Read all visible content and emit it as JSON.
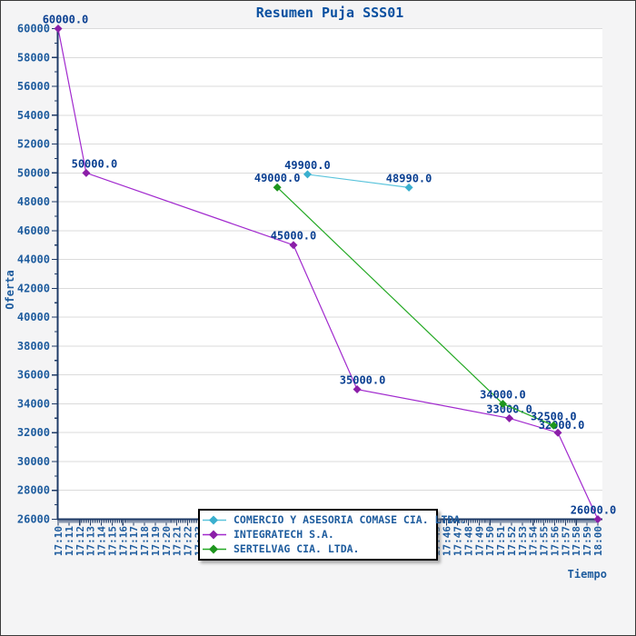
{
  "window": {
    "kind": "chart-panel"
  },
  "colors": {
    "background": "#F4F4F5",
    "plot_background": "#FFFFFF",
    "gridline": "#DBDBDB",
    "axis": "#1E3A66",
    "tick_label": "#1E5C9E",
    "title": "#0A50A0",
    "data_label": "#0A3F91",
    "legend_text": "#1E5C9E",
    "legend_border": "#000000",
    "legend_background": "#FFFFFF"
  },
  "chart_data": {
    "type": "line",
    "title": "Resumen Puja SSS01",
    "xlabel": "Tiempo",
    "ylabel": "Oferta",
    "ylim": [
      26000,
      60000
    ],
    "y_major_step": 2000,
    "y_minor_step": 1000,
    "x_axis": {
      "start": "17:10",
      "end": "18:00",
      "major_step_min": 1,
      "minor_ticks_per_interval": 5,
      "labels_rotated_deg": -90
    },
    "grid": "horizontal-only",
    "legend_position": "bottom-center",
    "series": [
      {
        "name": "COMERCIO Y ASESORIA COMASE CIA. LTDA.",
        "color": "#5BC4DC",
        "marker_color": "#3AAFCE",
        "points": [
          {
            "time": "17:33",
            "t_min": 23.1,
            "value": 49900,
            "label": "49900.0"
          },
          {
            "time": "17:43",
            "t_min": 32.5,
            "value": 48990,
            "label": "48990.0"
          }
        ]
      },
      {
        "name": "INTEGRATECH S.A.",
        "color": "#A129CE",
        "marker_color": "#8B1FA8",
        "points": [
          {
            "time": "17:10",
            "t_min": 0,
            "value": 60000,
            "label": "60000.0",
            "dx": 8
          },
          {
            "time": "17:13",
            "t_min": 2.6,
            "value": 50000,
            "label": "50000.0",
            "dx": 9
          },
          {
            "time": "17:32",
            "t_min": 21.8,
            "value": 45000,
            "label": "45000.0"
          },
          {
            "time": "17:38",
            "t_min": 27.7,
            "value": 35000,
            "label": "35000.0",
            "dx": 6
          },
          {
            "time": "17:52",
            "t_min": 41.8,
            "value": 33000,
            "label": "33000.0"
          },
          {
            "time": "17:56",
            "t_min": 46.3,
            "value": 32000,
            "label": "32000.0",
            "dx": 4,
            "dy": 2
          },
          {
            "time": "18:00",
            "t_min": 50,
            "value": 26000,
            "label": "26000.0",
            "dx": -5
          }
        ]
      },
      {
        "name": "SERTELVAG CIA. LTDA.",
        "color": "#22A822",
        "marker_color": "#1D951D",
        "points": [
          {
            "time": "17:30",
            "t_min": 20.3,
            "value": 49000,
            "label": "49000.0"
          },
          {
            "time": "17:51",
            "t_min": 41.2,
            "value": 34000,
            "label": "34000.0"
          },
          {
            "time": "17:56",
            "t_min": 45.9,
            "value": 32500,
            "label": "32500.0"
          }
        ]
      }
    ]
  }
}
